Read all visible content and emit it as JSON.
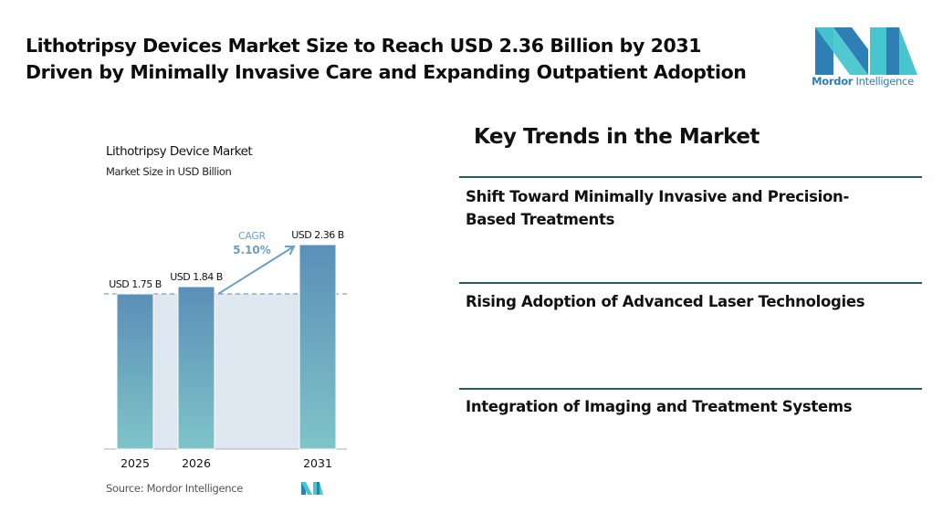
{
  "headline": {
    "line1": "Lithotripsy Devices Market Size to Reach USD 2.36 Billion by 2031",
    "line2": "Driven by Minimally Invasive Care and Expanding Outpatient Adoption"
  },
  "brand": {
    "name_bold": "Mordor",
    "name_regular": "Intelligence",
    "colors": {
      "blue": "#2f7fb7",
      "teal": "#48c6cf"
    }
  },
  "chart_data": {
    "type": "bar",
    "title": "Lithotripsy Device Market",
    "subtitle": "Market Size in USD Billion",
    "categories": [
      "2025",
      "2026",
      "2031"
    ],
    "values": [
      1.75,
      1.84,
      2.36
    ],
    "data_labels": [
      "USD 1.75 B",
      "USD 1.84 B",
      "USD 2.36 B"
    ],
    "unit": "USD Billion",
    "annotation": {
      "label": "CAGR",
      "value": "5.10%",
      "from": "2026",
      "to": "2031"
    },
    "reference_line": {
      "value": 1.75,
      "style": "dashed"
    },
    "xlabel": "",
    "ylabel": "",
    "ylim": [
      0,
      2.36
    ],
    "grid": false,
    "legend": "none",
    "colors": {
      "bar_top": "#5b8fb8",
      "bar_bottom": "#7ec4c8",
      "band": "#dfe8f0",
      "annotation": "#6a9fc6"
    },
    "source": "Source: Mordor Intelligence"
  },
  "trends": {
    "title": "Key Trends in the Market",
    "items": [
      {
        "line1": "Shift Toward Minimally Invasive and Precision-",
        "line2": "Based Treatments"
      },
      {
        "line1": "Rising Adoption of Advanced Laser Technologies",
        "line2": ""
      },
      {
        "line1": "Integration of Imaging and Treatment Systems",
        "line2": ""
      }
    ]
  }
}
